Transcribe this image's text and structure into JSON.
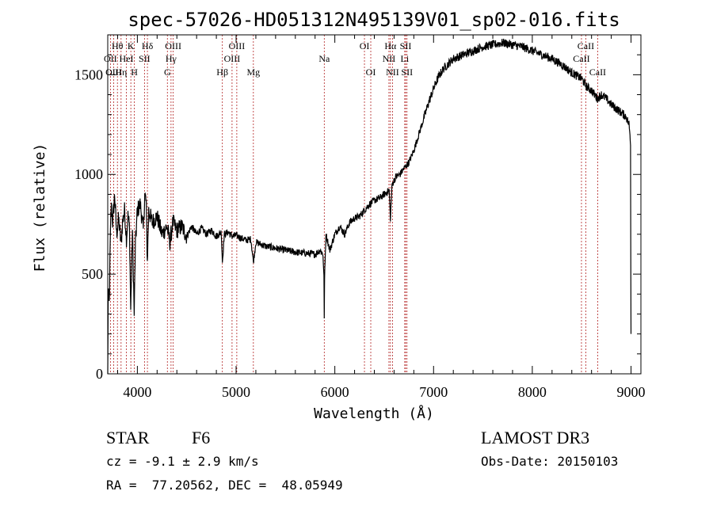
{
  "chart_data": {
    "type": "line",
    "title": "spec-57026-HD051312N495139V01_sp02-016.fits",
    "xlabel": "Wavelength (Å)",
    "ylabel": "Flux (relative)",
    "xlim": [
      3700,
      9100
    ],
    "ylim": [
      0,
      1700
    ],
    "xticks": [
      4000,
      5000,
      6000,
      7000,
      8000,
      9000
    ],
    "yticks": [
      0,
      500,
      1000,
      1500
    ],
    "anchors": [
      [
        3700,
        0
      ],
      [
        3705,
        400
      ],
      [
        3715,
        350
      ],
      [
        3725,
        640
      ],
      [
        3735,
        850
      ],
      [
        3750,
        760
      ],
      [
        3770,
        900
      ],
      [
        3790,
        700
      ],
      [
        3810,
        780
      ],
      [
        3835,
        650
      ],
      [
        3850,
        760
      ],
      [
        3870,
        820
      ],
      [
        3889,
        680
      ],
      [
        3905,
        790
      ],
      [
        3920,
        740
      ],
      [
        3933,
        320
      ],
      [
        3950,
        720
      ],
      [
        3968,
        300
      ],
      [
        3980,
        650
      ],
      [
        4000,
        820
      ],
      [
        4030,
        850
      ],
      [
        4060,
        720
      ],
      [
        4075,
        900
      ],
      [
        4090,
        860
      ],
      [
        4101,
        560
      ],
      [
        4115,
        820
      ],
      [
        4150,
        760
      ],
      [
        4200,
        790
      ],
      [
        4250,
        700
      ],
      [
        4300,
        740
      ],
      [
        4330,
        660
      ],
      [
        4360,
        760
      ],
      [
        4400,
        720
      ],
      [
        4450,
        740
      ],
      [
        4500,
        690
      ],
      [
        4550,
        740
      ],
      [
        4600,
        700
      ],
      [
        4650,
        730
      ],
      [
        4700,
        700
      ],
      [
        4750,
        720
      ],
      [
        4800,
        690
      ],
      [
        4850,
        710
      ],
      [
        4861,
        560
      ],
      [
        4880,
        700
      ],
      [
        4920,
        710
      ],
      [
        4960,
        690
      ],
      [
        5000,
        695
      ],
      [
        5050,
        680
      ],
      [
        5100,
        670
      ],
      [
        5150,
        675
      ],
      [
        5175,
        560
      ],
      [
        5200,
        660
      ],
      [
        5300,
        640
      ],
      [
        5400,
        630
      ],
      [
        5500,
        620
      ],
      [
        5600,
        610
      ],
      [
        5700,
        605
      ],
      [
        5800,
        600
      ],
      [
        5850,
        620
      ],
      [
        5880,
        600
      ],
      [
        5890,
        480
      ],
      [
        5893,
        290
      ],
      [
        5896,
        470
      ],
      [
        5910,
        700
      ],
      [
        5950,
        620
      ],
      [
        6000,
        700
      ],
      [
        6050,
        740
      ],
      [
        6100,
        700
      ],
      [
        6150,
        760
      ],
      [
        6200,
        780
      ],
      [
        6250,
        790
      ],
      [
        6300,
        820
      ],
      [
        6350,
        850
      ],
      [
        6400,
        870
      ],
      [
        6450,
        880
      ],
      [
        6500,
        900
      ],
      [
        6550,
        920
      ],
      [
        6563,
        780
      ],
      [
        6580,
        950
      ],
      [
        6620,
        990
      ],
      [
        6660,
        1000
      ],
      [
        6700,
        1030
      ],
      [
        6750,
        1060
      ],
      [
        6800,
        1120
      ],
      [
        6850,
        1200
      ],
      [
        6900,
        1280
      ],
      [
        6950,
        1360
      ],
      [
        7000,
        1430
      ],
      [
        7050,
        1490
      ],
      [
        7100,
        1530
      ],
      [
        7200,
        1580
      ],
      [
        7300,
        1600
      ],
      [
        7400,
        1620
      ],
      [
        7500,
        1640
      ],
      [
        7600,
        1650
      ],
      [
        7700,
        1660
      ],
      [
        7800,
        1650
      ],
      [
        7900,
        1640
      ],
      [
        8000,
        1620
      ],
      [
        8100,
        1600
      ],
      [
        8200,
        1580
      ],
      [
        8300,
        1550
      ],
      [
        8400,
        1510
      ],
      [
        8500,
        1480
      ],
      [
        8550,
        1440
      ],
      [
        8600,
        1420
      ],
      [
        8662,
        1380
      ],
      [
        8700,
        1400
      ],
      [
        8750,
        1380
      ],
      [
        8800,
        1350
      ],
      [
        8850,
        1330
      ],
      [
        8900,
        1310
      ],
      [
        8950,
        1290
      ],
      [
        8980,
        1250
      ],
      [
        8995,
        1160
      ],
      [
        8998,
        480
      ],
      [
        9000,
        200
      ]
    ],
    "lines": [
      {
        "label": "Hθ",
        "x": 3798,
        "row": 0
      },
      {
        "label": "OII",
        "x": 3727,
        "row": 1
      },
      {
        "label": "OIII",
        "x": 3760,
        "row": 2
      },
      {
        "label": "Hη",
        "x": 3835,
        "row": 2
      },
      {
        "label": "HeI",
        "x": 3889,
        "row": 1
      },
      {
        "label": "K",
        "x": 3934,
        "row": 0
      },
      {
        "label": "H",
        "x": 3969,
        "row": 2
      },
      {
        "label": "SII",
        "x": 4072,
        "row": 1
      },
      {
        "label": "Hδ",
        "x": 4102,
        "row": 0
      },
      {
        "label": "OIII",
        "x": 4363,
        "row": 0
      },
      {
        "label": "Hγ",
        "x": 4341,
        "row": 1
      },
      {
        "label": "G",
        "x": 4304,
        "row": 2
      },
      {
        "label": "Hβ",
        "x": 4861,
        "row": 2
      },
      {
        "label": "OIII",
        "x": 5007,
        "row": 0
      },
      {
        "label": "OIII",
        "x": 4959,
        "row": 1
      },
      {
        "label": "Mg",
        "x": 5175,
        "row": 2
      },
      {
        "label": "Na",
        "x": 5893,
        "row": 1
      },
      {
        "label": "OI",
        "x": 6300,
        "row": 0
      },
      {
        "label": "OI",
        "x": 6364,
        "row": 2
      },
      {
        "label": "Hα",
        "x": 6563,
        "row": 0
      },
      {
        "label": "NII",
        "x": 6548,
        "row": 1
      },
      {
        "label": "NII",
        "x": 6584,
        "row": 2
      },
      {
        "label": "SII",
        "x": 6717,
        "row": 0
      },
      {
        "label": "Li",
        "x": 6708,
        "row": 1
      },
      {
        "label": "SII",
        "x": 6731,
        "row": 2
      },
      {
        "label": "CaII",
        "x": 8542,
        "row": 0
      },
      {
        "label": "CaII",
        "x": 8498,
        "row": 1
      },
      {
        "label": "CaII",
        "x": 8662,
        "row": 2
      }
    ]
  },
  "info": {
    "object_class": "STAR",
    "subclass": "F6",
    "survey": "LAMOST DR3",
    "redshift": "cz = -9.1 ± 2.9 km/s",
    "obs_date": "Obs-Date: 20150103",
    "coords": "RA =  77.20562, DEC =  48.05949"
  }
}
